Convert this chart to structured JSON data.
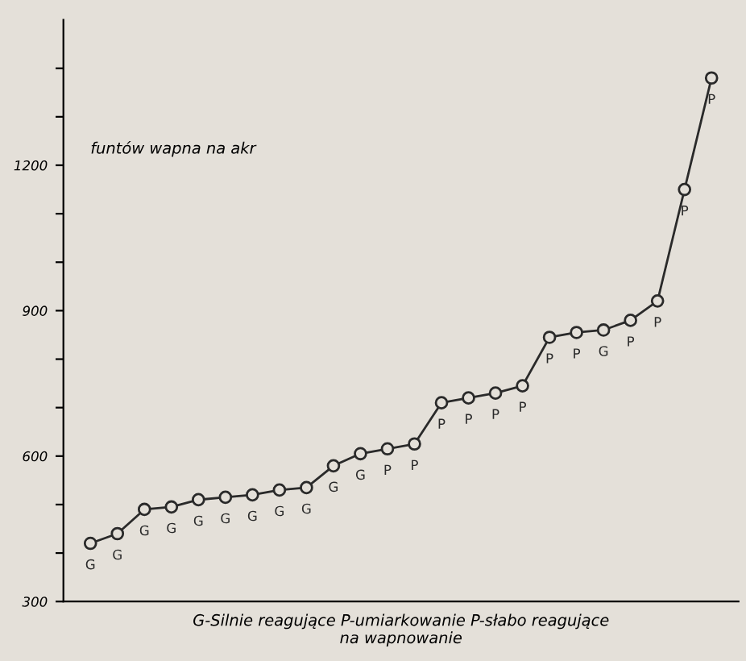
{
  "chart_data": {
    "type": "line",
    "xlabel": "G-Silnie reagujące P-umiarkowanie P-słabo reagujące\nna wapnowanie",
    "annotations": [
      "funtów wapna na akr"
    ],
    "categories": [
      null,
      null,
      null,
      null,
      null,
      null,
      null,
      null,
      null,
      null,
      null,
      null,
      null,
      null,
      null,
      null,
      null,
      null,
      null,
      null,
      null,
      null,
      null,
      null
    ],
    "series": [
      {
        "color": "#2a2a2a",
        "values": [
          420,
          440,
          490,
          495,
          510,
          515,
          520,
          530,
          535,
          580,
          605,
          615,
          625,
          710,
          720,
          730,
          745,
          845,
          855,
          860,
          880,
          920,
          1150,
          1380
        ],
        "value_labels": [
          "G",
          "G",
          "G",
          "G",
          "G",
          "G",
          "G",
          "G",
          "G",
          "G",
          "G",
          "P",
          "P",
          "P",
          "P",
          "P",
          "P",
          "P",
          "P",
          "G",
          "P",
          "P",
          "P",
          "P"
        ]
      }
    ],
    "ylim": [
      300,
      1500
    ],
    "yticks": [
      300,
      {
        "value": 400,
        "label": null
      },
      {
        "value": 500,
        "label": null
      },
      600,
      {
        "value": 700,
        "label": null
      },
      {
        "value": 800,
        "label": null
      },
      900,
      {
        "value": 1000,
        "label": null
      },
      {
        "value": 1100,
        "label": null
      },
      1200,
      {
        "value": 1300,
        "label": null
      },
      {
        "value": 1400,
        "label": null
      }
    ],
    "marker": "circle",
    "line_style": "solid",
    "grid": false,
    "legend": false
  }
}
